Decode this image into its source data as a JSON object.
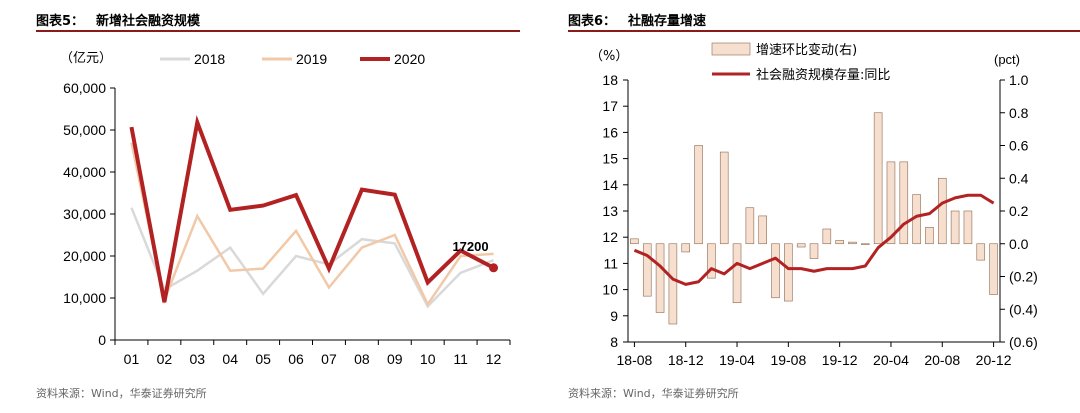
{
  "charts": {
    "left": {
      "title_num": "图表5：",
      "title_text": "新增社会融资规模",
      "source": "资料来源：Wind，华泰证券研究所"
    },
    "right": {
      "title_num": "图表6：",
      "title_text": "社融存量增速",
      "source": "资料来源：Wind，华泰证券研究所"
    }
  },
  "chart_data": [
    {
      "type": "line",
      "title": "新增社会融资规模",
      "unit_label": "（亿元）",
      "categories": [
        "01",
        "02",
        "03",
        "04",
        "05",
        "06",
        "07",
        "08",
        "09",
        "10",
        "11",
        "12"
      ],
      "ylim": [
        0,
        60000
      ],
      "yticks": [
        0,
        10000,
        20000,
        30000,
        40000,
        50000,
        60000
      ],
      "ytick_labels": [
        "0",
        "10,000",
        "20,000",
        "30,000",
        "40,000",
        "50,000",
        "60,000"
      ],
      "legend_position": "top",
      "annotation": "17200",
      "series": [
        {
          "name": "2018",
          "color": "#d9d9d9",
          "values": [
            31500,
            12000,
            16500,
            22000,
            11000,
            20000,
            18000,
            24000,
            23000,
            8000,
            16000,
            19000
          ]
        },
        {
          "name": "2019",
          "color": "#f2c9a8",
          "values": [
            47000,
            9500,
            29500,
            16500,
            17000,
            26000,
            12500,
            22000,
            25000,
            8500,
            20000,
            20500
          ]
        },
        {
          "name": "2020",
          "color": "#b22222",
          "values": [
            50700,
            9000,
            51800,
            31000,
            32000,
            34500,
            17000,
            35800,
            34600,
            13700,
            21300,
            17200
          ]
        }
      ]
    },
    {
      "type": "bar+line",
      "title": "社融存量增速",
      "left_unit": "（%）",
      "right_unit": "(pct)",
      "x_tick_labels": [
        "18-08",
        "18-12",
        "19-04",
        "19-08",
        "19-12",
        "20-04",
        "20-08",
        "20-12"
      ],
      "ylim_left": [
        8,
        18
      ],
      "yticks_left": [
        "8",
        "9",
        "10",
        "11",
        "12",
        "13",
        "14",
        "15",
        "16",
        "17",
        "18"
      ],
      "ylim_right": [
        -0.6,
        1.0
      ],
      "yticks_right": [
        "(0.6)",
        "(0.4)",
        "(0.2)",
        "0.0",
        "0.2",
        "0.4",
        "0.6",
        "0.8",
        "1.0"
      ],
      "legend_position": "top",
      "series": [
        {
          "name": "增速环比变动(右)",
          "type": "bar",
          "axis": "right",
          "color": "#f7dfcf",
          "edge": "#8c6b52",
          "values": [
            0.03,
            -0.32,
            -0.42,
            -0.49,
            -0.05,
            0.6,
            -0.21,
            0.56,
            -0.36,
            0.22,
            0.17,
            -0.33,
            -0.35,
            -0.02,
            -0.09,
            0.09,
            0.02,
            0.01,
            0.0,
            0.8,
            0.5,
            0.5,
            0.3,
            0.1,
            0.4,
            0.2,
            0.2,
            -0.1,
            -0.31
          ]
        },
        {
          "name": "社会融资规模存量:同比",
          "type": "line",
          "axis": "left",
          "color": "#b22222",
          "values": [
            11.5,
            11.3,
            10.9,
            10.4,
            10.2,
            10.3,
            10.8,
            10.6,
            11.0,
            10.8,
            11.0,
            11.2,
            10.8,
            10.8,
            10.7,
            10.8,
            10.8,
            10.8,
            10.9,
            11.6,
            12.0,
            12.5,
            12.8,
            12.9,
            13.3,
            13.5,
            13.6,
            13.6,
            13.3
          ]
        }
      ]
    }
  ]
}
